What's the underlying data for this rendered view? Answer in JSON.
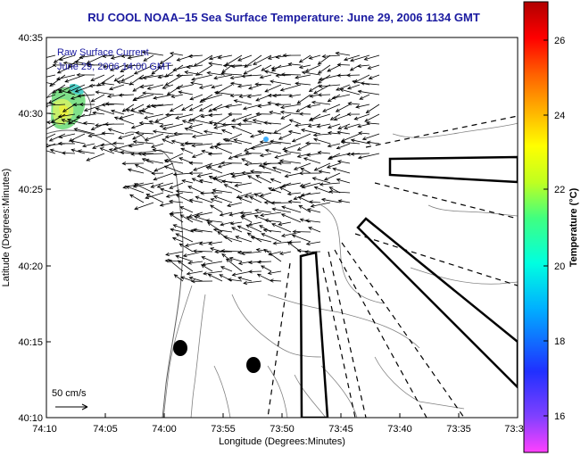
{
  "title": "RU COOL  NOAA–15  Sea Surface Temperature:  June 29, 2006 1134 GMT",
  "legend": {
    "line1": "Raw Surface Current",
    "line2": "June 29, 2006 14:00 GMT"
  },
  "scale_label": "50 cm/s",
  "axes": {
    "xlabel": "Longitude (Degrees:Minutes)",
    "ylabel": "Latitude (Degrees:Minutes)",
    "x_ticks": [
      "74:10",
      "74:05",
      "74:00",
      "73:55",
      "73:50",
      "73:45",
      "73:40",
      "73:35",
      "73:3"
    ],
    "y_ticks": [
      "40:35",
      "40:30",
      "40:25",
      "40:20",
      "40:15",
      "40:10"
    ]
  },
  "colorbar": {
    "label": "Temperature (°C)",
    "ticks": [
      "26",
      "24",
      "22",
      "20",
      "18",
      "16"
    ],
    "range": [
      15,
      27.3
    ],
    "colors": [
      "#ff40ff",
      "#8040ff",
      "#2030ff",
      "#00b0ff",
      "#00ffe0",
      "#40ff80",
      "#c0ff20",
      "#ffff00",
      "#ffb000",
      "#ff6000",
      "#ff0000",
      "#b00000"
    ]
  },
  "colors": {
    "title": "#1a1aa0",
    "legend": "#1a1aa0",
    "contour": "#808080",
    "vectors": "#000000"
  },
  "map": {
    "features": [
      "raw-current-vector-field",
      "coastline",
      "bathymetry-contours",
      "shipping-lanes",
      "sst-patch"
    ]
  }
}
